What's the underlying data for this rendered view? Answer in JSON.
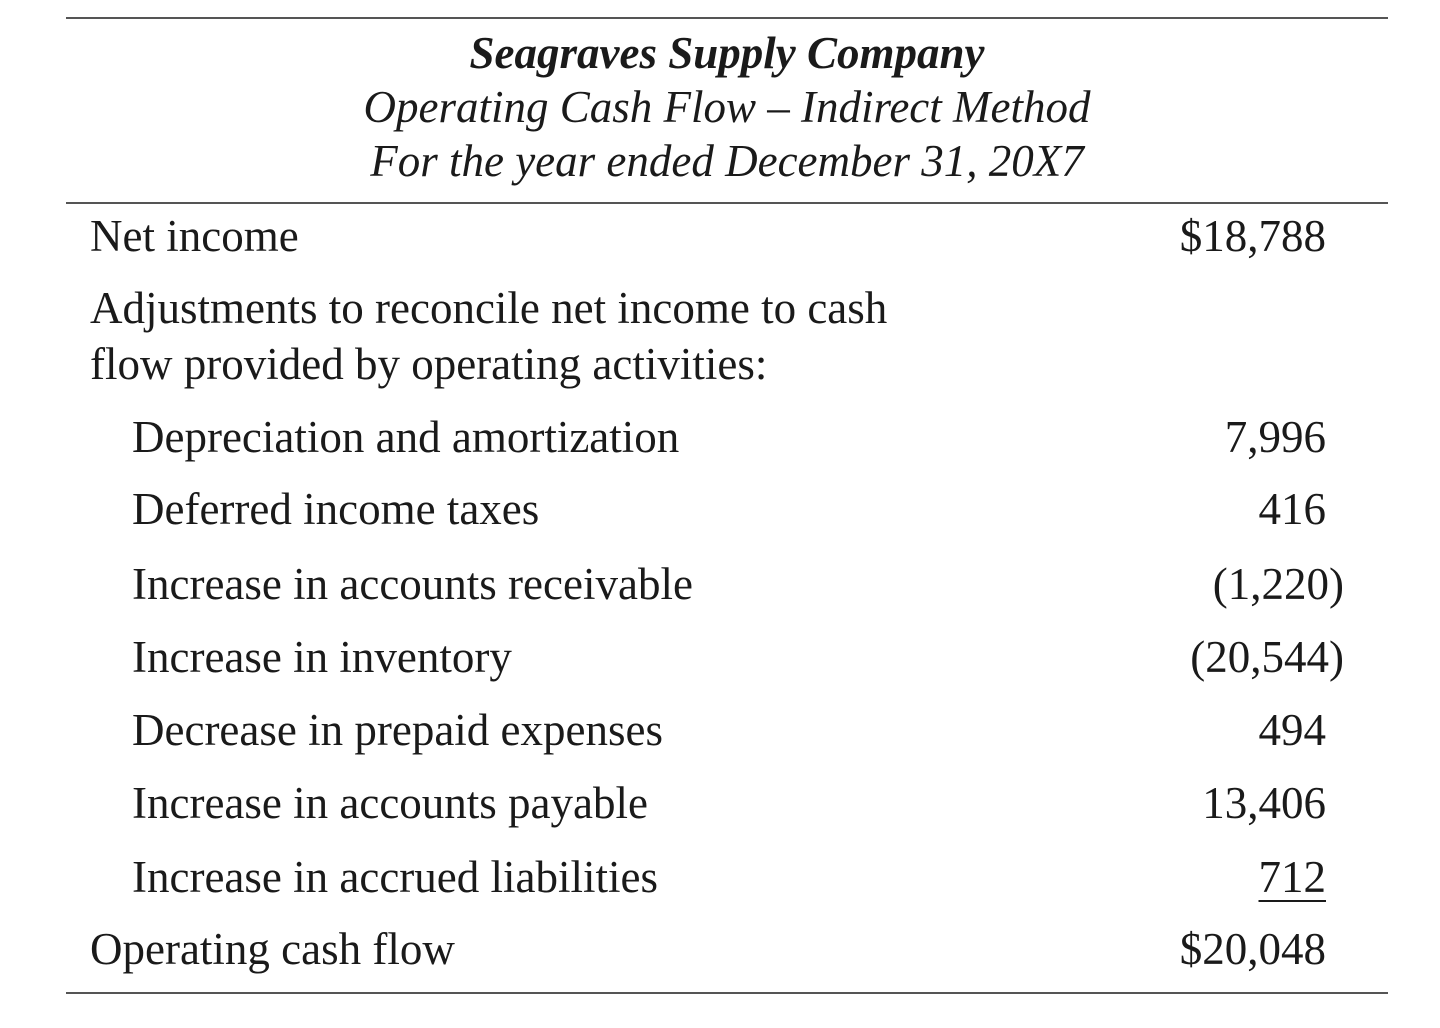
{
  "header": {
    "company": "Seagraves Supply Company",
    "statement": "Operating Cash Flow – Indirect Method",
    "period": "For the year ended December 31, 20X7"
  },
  "net_income": {
    "label": "Net income",
    "amount": "$18,788"
  },
  "adjustments_heading": {
    "line1": "Adjustments to reconcile net income to cash",
    "line2": "flow provided by operating activities:"
  },
  "adjustments": [
    {
      "label": "Depreciation and amortization",
      "amount": "7,996"
    },
    {
      "label": "Deferred income taxes",
      "amount": "416"
    },
    {
      "label": "Increase in accounts receivable",
      "amount": "(1,220)"
    },
    {
      "label": "Increase in inventory",
      "amount": "(20,544)"
    },
    {
      "label": "Decrease in prepaid expenses",
      "amount": "494"
    },
    {
      "label": "Increase in accounts payable",
      "amount": "13,406"
    },
    {
      "label": "Increase in accrued liabilities",
      "amount": "712"
    }
  ],
  "total": {
    "label": "Operating cash flow",
    "amount": "$20,048"
  }
}
